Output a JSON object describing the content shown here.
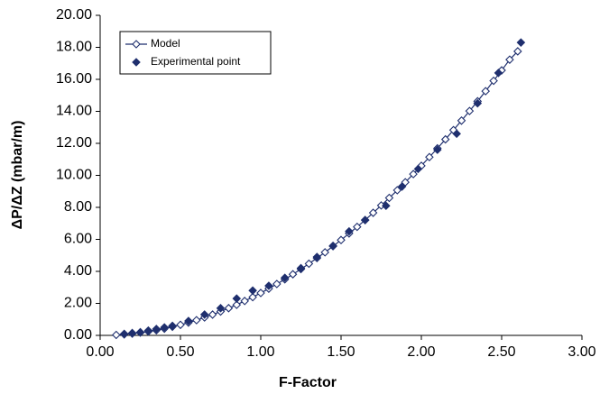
{
  "chart_data": {
    "type": "line",
    "xlabel": "F-Factor",
    "ylabel": "ΔP/ΔZ (mbar/m)",
    "xlim": [
      0,
      3
    ],
    "ylim": [
      0,
      20
    ],
    "xticks": [
      {
        "value": 0,
        "label": "0.00"
      },
      {
        "value": 0.5,
        "label": "0.50"
      },
      {
        "value": 1,
        "label": "1.00"
      },
      {
        "value": 1.5,
        "label": "1.50"
      },
      {
        "value": 2,
        "label": "2.00"
      },
      {
        "value": 2.5,
        "label": "2.50"
      },
      {
        "value": 3,
        "label": "3.00"
      }
    ],
    "yticks": [
      {
        "value": 0,
        "label": "0.00"
      },
      {
        "value": 2,
        "label": "2.00"
      },
      {
        "value": 4,
        "label": "4.00"
      },
      {
        "value": 6,
        "label": "6.00"
      },
      {
        "value": 8,
        "label": "8.00"
      },
      {
        "value": 10,
        "label": "10.00"
      },
      {
        "value": 12,
        "label": "12.00"
      },
      {
        "value": 14,
        "label": "14.00"
      },
      {
        "value": 16,
        "label": "16.00"
      },
      {
        "value": 18,
        "label": "18.00"
      },
      {
        "value": 20,
        "label": "20.00"
      }
    ],
    "legend": "upper left",
    "series": [
      {
        "name": "Model",
        "color": "#1f2f6e",
        "line": true,
        "marker": "open-diamond",
        "x": [
          0.1,
          0.15,
          0.2,
          0.25,
          0.3,
          0.35,
          0.4,
          0.45,
          0.5,
          0.55,
          0.6,
          0.65,
          0.7,
          0.75,
          0.8,
          0.85,
          0.9,
          0.95,
          1.0,
          1.05,
          1.1,
          1.15,
          1.2,
          1.25,
          1.3,
          1.35,
          1.4,
          1.45,
          1.5,
          1.55,
          1.6,
          1.65,
          1.7,
          1.75,
          1.8,
          1.85,
          1.9,
          1.95,
          2.0,
          2.05,
          2.1,
          2.15,
          2.2,
          2.25,
          2.3,
          2.35,
          2.4,
          2.45,
          2.5,
          2.55,
          2.6
        ],
        "values": [
          0.03,
          0.06,
          0.11,
          0.17,
          0.24,
          0.32,
          0.42,
          0.54,
          0.66,
          0.8,
          0.95,
          1.12,
          1.3,
          1.49,
          1.7,
          1.91,
          2.15,
          2.39,
          2.65,
          2.92,
          3.21,
          3.5,
          3.82,
          4.14,
          4.48,
          4.83,
          5.19,
          5.57,
          5.96,
          6.37,
          6.78,
          7.21,
          7.66,
          8.12,
          8.59,
          9.07,
          9.57,
          10.08,
          10.6,
          11.14,
          11.69,
          12.25,
          12.83,
          13.42,
          14.02,
          14.63,
          15.26,
          15.91,
          16.56,
          17.23,
          17.75
        ]
      },
      {
        "name": "Experimental point",
        "color": "#1f2f6e",
        "line": false,
        "marker": "filled-diamond",
        "x": [
          0.15,
          0.2,
          0.25,
          0.3,
          0.35,
          0.4,
          0.45,
          0.55,
          0.65,
          0.75,
          0.85,
          0.95,
          1.05,
          1.15,
          1.25,
          1.35,
          1.45,
          1.55,
          1.65,
          1.78,
          1.88,
          1.98,
          2.1,
          2.22,
          2.35,
          2.48,
          2.62
        ],
        "values": [
          0.1,
          0.15,
          0.2,
          0.3,
          0.4,
          0.5,
          0.6,
          0.9,
          1.3,
          1.7,
          2.3,
          2.8,
          3.1,
          3.6,
          4.2,
          4.9,
          5.6,
          6.5,
          7.2,
          8.1,
          9.3,
          10.4,
          11.6,
          12.6,
          14.5,
          16.4,
          18.3
        ]
      }
    ]
  }
}
